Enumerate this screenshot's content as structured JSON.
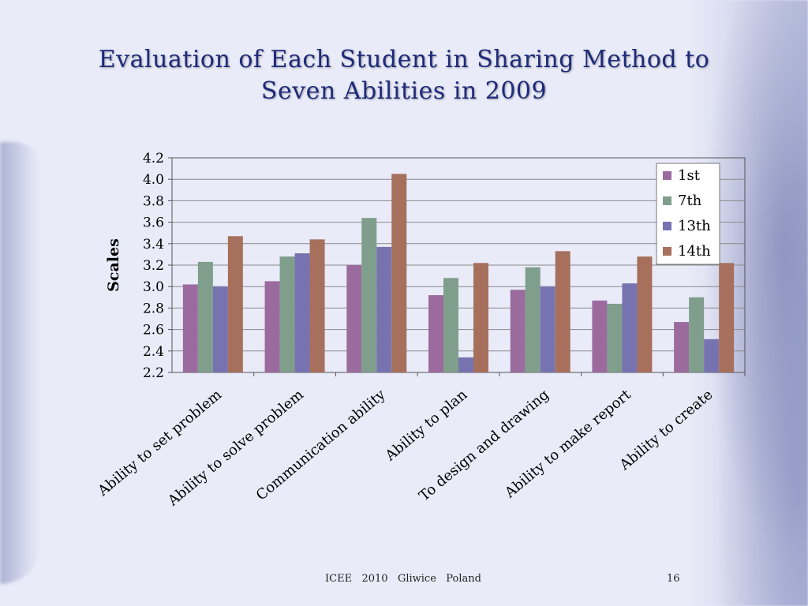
{
  "slide": {
    "title_line1": "Evaluation of Each Student in Sharing Method to",
    "title_line2": "Seven Abilities in 2009",
    "footer_text": "ICEE   2010   Gliwice   Poland",
    "page_number": "16"
  },
  "chart_data": {
    "type": "bar",
    "title": "",
    "xlabel": "",
    "ylabel": "Scales",
    "ylim": [
      2.2,
      4.2
    ],
    "yticks": [
      "2.2",
      "2.4",
      "2.6",
      "2.8",
      "3.0",
      "3.2",
      "3.4",
      "3.6",
      "3.8",
      "4.0",
      "4.2"
    ],
    "grid": true,
    "legend_position": "top-right",
    "categories": [
      "Ability to set problem",
      "Ability to solve problem",
      "Communication ability",
      "Ability to plan",
      "To design and drawing",
      "Ability to make report",
      "Ability to create"
    ],
    "series": [
      {
        "name": "1st",
        "color": "#9b6b9e",
        "values": [
          3.02,
          3.05,
          3.2,
          2.92,
          2.97,
          2.87,
          2.67
        ]
      },
      {
        "name": "7th",
        "color": "#7f9e8c",
        "values": [
          3.23,
          3.28,
          3.64,
          3.08,
          3.18,
          2.84,
          2.9
        ]
      },
      {
        "name": "13th",
        "color": "#7773b1",
        "values": [
          3.0,
          3.31,
          3.37,
          2.34,
          3.0,
          3.03,
          2.51
        ]
      },
      {
        "name": "14th",
        "color": "#a6705c",
        "values": [
          3.47,
          3.44,
          4.05,
          3.22,
          3.33,
          3.28,
          3.22
        ]
      }
    ]
  }
}
